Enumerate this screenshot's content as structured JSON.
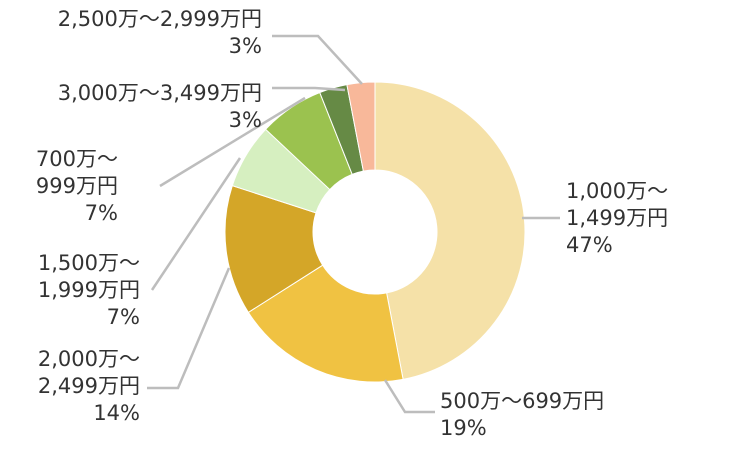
{
  "chart_data": {
    "type": "pie",
    "donut": true,
    "legend": "none",
    "slices": [
      {
        "category": "1,000万〜1,499万円",
        "lines": [
          "1,000万〜",
          "1,499万円"
        ],
        "value": 47,
        "label": "47%",
        "color": "#f5e1a8"
      },
      {
        "category": "500万〜699万円",
        "lines": [
          "500万〜699万円"
        ],
        "value": 19,
        "label": "19%",
        "color": "#f0c242"
      },
      {
        "category": "2,000万〜2,499万円",
        "lines": [
          "2,000万〜",
          "2,499万円"
        ],
        "value": 14,
        "label": "14%",
        "color": "#d4a628"
      },
      {
        "category": "1,500万〜1,999万円",
        "lines": [
          "1,500万〜",
          "1,999万円"
        ],
        "value": 7,
        "label": "7%",
        "color": "#d6efc0"
      },
      {
        "category": "700万〜999万円",
        "lines": [
          "700万〜",
          "999万円"
        ],
        "value": 7,
        "label": "7%",
        "color": "#9bc24f"
      },
      {
        "category": "3,000万〜3,499万円",
        "lines": [
          "3,000万〜3,499万円"
        ],
        "value": 3,
        "label": "3%",
        "color": "#668a45"
      },
      {
        "category": "2,500万〜2,999万円",
        "lines": [
          "2,500万〜2,999万円"
        ],
        "value": 3,
        "label": "3%",
        "color": "#f8b89a"
      }
    ]
  }
}
